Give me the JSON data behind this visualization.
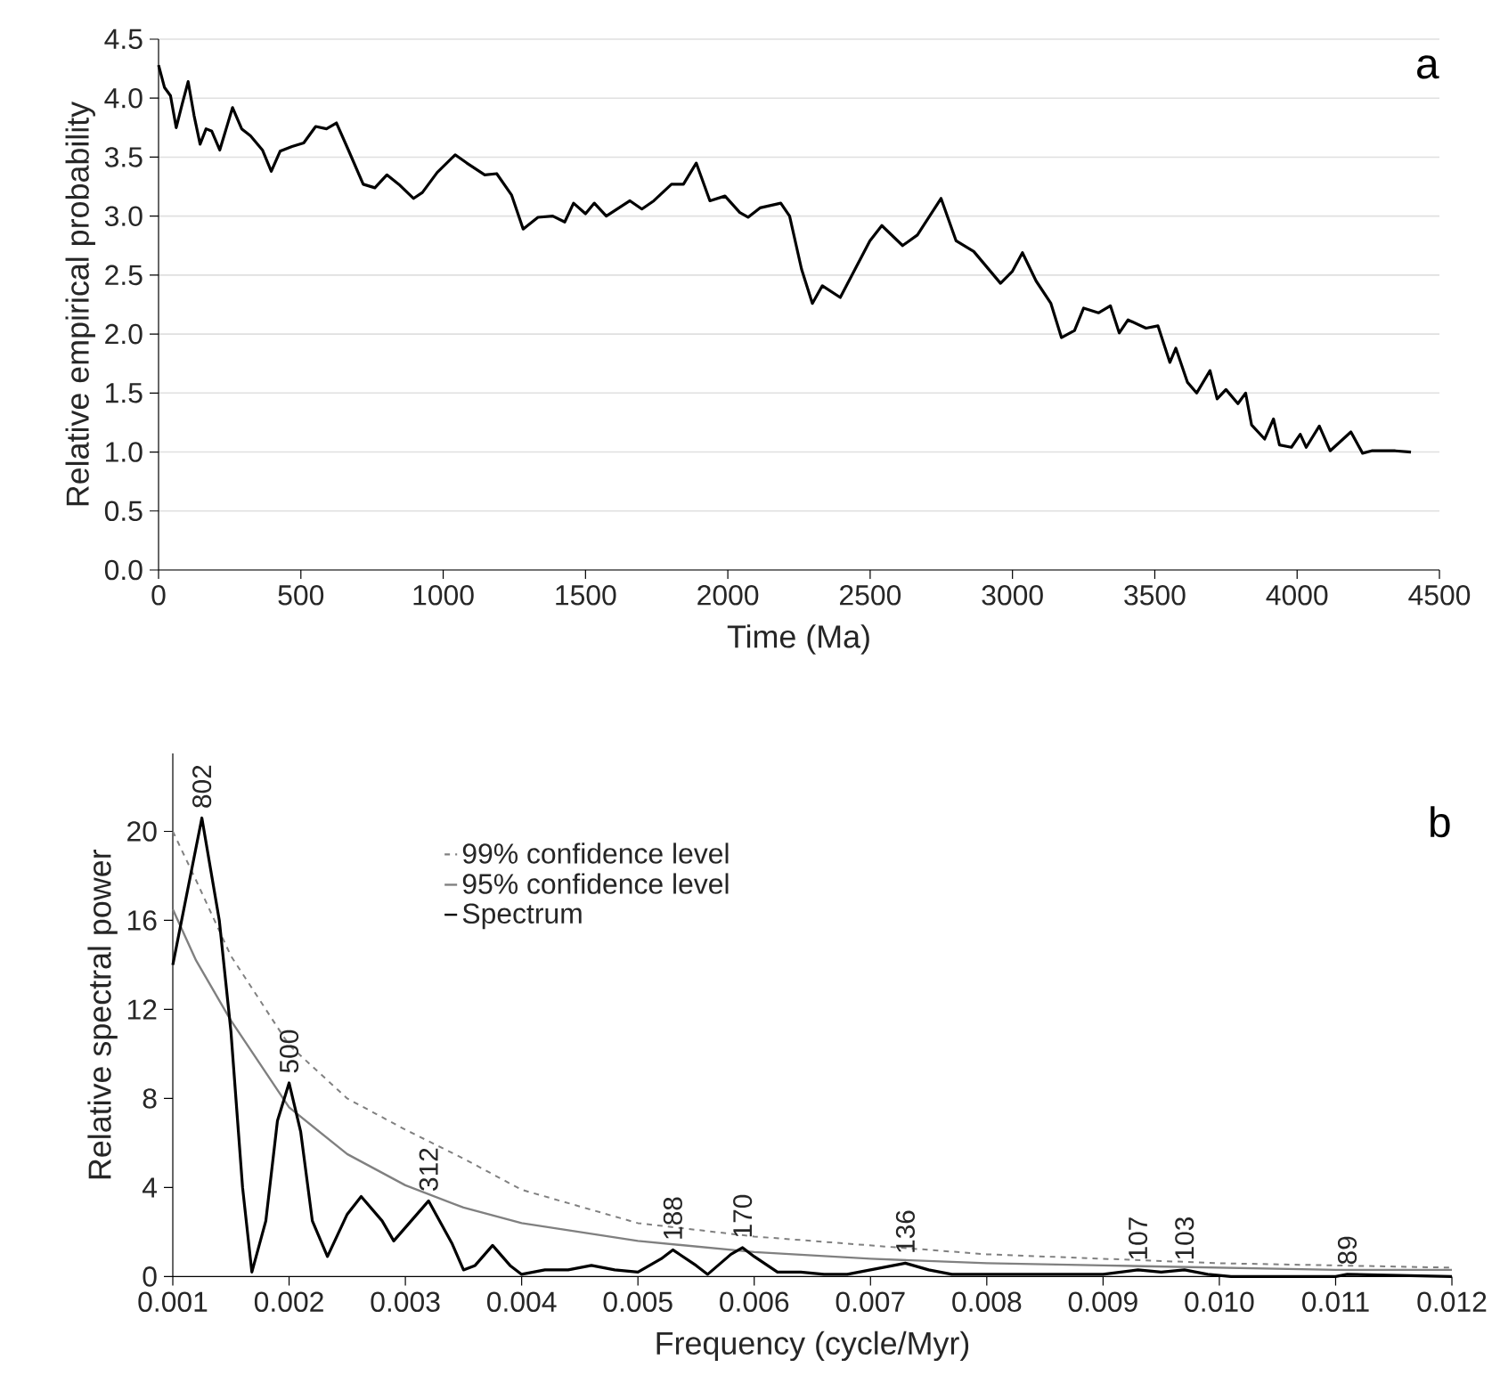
{
  "chart_data": [
    {
      "type": "line",
      "xlabel": "Time (Ma)",
      "ylabel": "Relative empirical probability",
      "annotations": [
        "a"
      ],
      "xlim": [
        0,
        4500
      ],
      "xticks": [
        0,
        500,
        1000,
        1500,
        2000,
        2500,
        3000,
        3500,
        4000,
        4500
      ],
      "ylim": [
        0,
        4.5
      ],
      "yticks": [
        {
          "value": 0,
          "label": "0.0"
        },
        0.5,
        {
          "value": 1,
          "label": "1.0"
        },
        1.5,
        {
          "value": 2,
          "label": "2.0"
        },
        2.5,
        {
          "value": 3,
          "label": "3.0"
        },
        3.5,
        {
          "value": 4,
          "label": "4.0"
        },
        4.5
      ],
      "grid": "y",
      "marker": "none",
      "series": [
        {
          "color": "#000000",
          "line_style": "solid",
          "x": [
            0,
            21,
            42,
            62,
            83,
            104,
            125,
            146,
            167,
            187,
            215,
            260,
            292,
            323,
            365,
            396,
            427,
            469,
            510,
            552,
            590,
            625,
            667,
            719,
            760,
            802,
            844,
            896,
            927,
            979,
            1042,
            1083,
            1146,
            1188,
            1240,
            1281,
            1333,
            1385,
            1427,
            1458,
            1500,
            1531,
            1573,
            1656,
            1698,
            1740,
            1802,
            1844,
            1889,
            1937,
            1990,
            2042,
            2071,
            2113,
            2186,
            2217,
            2259,
            2297,
            2332,
            2395,
            2447,
            2499,
            2541,
            2614,
            2666,
            2749,
            2802,
            2864,
            2958,
            2999,
            3035,
            3083,
            3135,
            3172,
            3218,
            3250,
            3302,
            3344,
            3375,
            3406,
            3469,
            3511,
            3553,
            3574,
            3615,
            3647,
            3694,
            3719,
            3750,
            3792,
            3819,
            3840,
            3886,
            3917,
            3938,
            3980,
            4011,
            4032,
            4078,
            4116,
            4189,
            4230,
            4262,
            4345,
            4400
          ],
          "values": [
            4.28,
            4.09,
            4.02,
            3.75,
            3.95,
            4.14,
            3.85,
            3.61,
            3.74,
            3.72,
            3.56,
            3.92,
            3.74,
            3.68,
            3.56,
            3.38,
            3.55,
            3.59,
            3.62,
            3.76,
            3.74,
            3.79,
            3.56,
            3.27,
            3.24,
            3.35,
            3.27,
            3.15,
            3.2,
            3.37,
            3.52,
            3.45,
            3.35,
            3.36,
            3.18,
            2.89,
            2.99,
            3.0,
            2.95,
            3.11,
            3.02,
            3.11,
            3.0,
            3.13,
            3.06,
            3.13,
            3.27,
            3.27,
            3.45,
            3.13,
            3.17,
            3.03,
            2.99,
            3.07,
            3.11,
            3.0,
            2.55,
            2.26,
            2.41,
            2.31,
            2.55,
            2.79,
            2.92,
            2.75,
            2.84,
            3.15,
            2.79,
            2.7,
            2.43,
            2.53,
            2.69,
            2.45,
            2.26,
            1.97,
            2.03,
            2.22,
            2.18,
            2.24,
            2.01,
            2.12,
            2.05,
            2.07,
            1.76,
            1.88,
            1.59,
            1.5,
            1.69,
            1.45,
            1.53,
            1.41,
            1.5,
            1.23,
            1.11,
            1.28,
            1.06,
            1.04,
            1.15,
            1.04,
            1.22,
            1.01,
            1.17,
            0.99,
            1.01,
            1.01,
            1.0
          ]
        }
      ]
    },
    {
      "type": "line",
      "xlabel": "Frequency (cycle/Myr)",
      "ylabel": "Relative spectral power",
      "annotations": [
        "b",
        {
          "text": "802",
          "x": 0.00125,
          "y": 20.6
        },
        {
          "text": "500",
          "x": 0.002,
          "y": 8.7
        },
        {
          "text": "312",
          "x": 0.0032,
          "y": 3.4
        },
        {
          "text": "188",
          "x": 0.0053,
          "y": 1.2
        },
        {
          "text": "170",
          "x": 0.0059,
          "y": 1.3
        },
        {
          "text": "136",
          "x": 0.0073,
          "y": 0.6
        },
        {
          "text": "107",
          "x": 0.0093,
          "y": 0.3
        },
        {
          "text": "103",
          "x": 0.0097,
          "y": 0.3
        },
        {
          "text": "89",
          "x": 0.0111,
          "y": 0.1
        }
      ],
      "xlim": [
        0.001,
        0.012
      ],
      "xticks": [
        0.001,
        0.002,
        0.003,
        0.004,
        0.005,
        0.006,
        0.007,
        0.008,
        0.009,
        {
          "value": 0.01,
          "label": "0.010"
        },
        0.011,
        0.012
      ],
      "ylim": [
        0,
        23.5
      ],
      "yticks": [
        0,
        4,
        8,
        12,
        16,
        20
      ],
      "grid": false,
      "legend": "top",
      "marker": "none",
      "series": [
        {
          "name": "99% confidence level",
          "color": "#808080",
          "line_style": "dashed",
          "x": [
            0.001,
            0.0012,
            0.0015,
            0.002,
            0.0025,
            0.003,
            0.0035,
            0.004,
            0.005,
            0.006,
            0.007,
            0.008,
            0.009,
            0.01,
            0.011,
            0.012
          ],
          "values": [
            20,
            17.8,
            14.4,
            10.4,
            8,
            6.6,
            5.3,
            3.9,
            2.4,
            1.8,
            1.4,
            1.0,
            0.8,
            0.6,
            0.5,
            0.4
          ]
        },
        {
          "name": "95% confidence level",
          "color": "#808080",
          "line_style": "solid",
          "x": [
            0.001,
            0.0012,
            0.0015,
            0.002,
            0.0025,
            0.003,
            0.0035,
            0.004,
            0.005,
            0.006,
            0.007,
            0.008,
            0.009,
            0.01,
            0.011,
            0.012
          ],
          "values": [
            16.5,
            14.2,
            11.5,
            7.6,
            5.5,
            4.1,
            3.1,
            2.4,
            1.6,
            1.1,
            0.8,
            0.6,
            0.5,
            0.4,
            0.3,
            0.3
          ]
        },
        {
          "name": "Spectrum",
          "color": "#000000",
          "line_style": "solid",
          "x": [
            0.001,
            0.00125,
            0.0014,
            0.0015,
            0.0016,
            0.00168,
            0.0018,
            0.0019,
            0.002,
            0.0021,
            0.0022,
            0.00233,
            0.0025,
            0.00262,
            0.0028,
            0.0029,
            0.003,
            0.0032,
            0.0034,
            0.0035,
            0.0036,
            0.00375,
            0.0039,
            0.004,
            0.0042,
            0.0044,
            0.0046,
            0.0048,
            0.005,
            0.0052,
            0.0053,
            0.0055,
            0.0056,
            0.0058,
            0.0059,
            0.006,
            0.0062,
            0.0064,
            0.0066,
            0.0068,
            0.007,
            0.0073,
            0.0075,
            0.0077,
            0.009,
            0.0093,
            0.0095,
            0.0097,
            0.0099,
            0.0101,
            0.011,
            0.0111,
            0.012
          ],
          "values": [
            14,
            20.6,
            16,
            11,
            4,
            0.2,
            2.5,
            7,
            8.7,
            6.5,
            2.5,
            0.9,
            2.8,
            3.6,
            2.5,
            1.6,
            2.2,
            3.4,
            1.5,
            0.3,
            0.5,
            1.4,
            0.5,
            0.1,
            0.3,
            0.3,
            0.5,
            0.3,
            0.2,
            0.8,
            1.2,
            0.5,
            0.1,
            1.0,
            1.3,
            0.9,
            0.2,
            0.2,
            0.1,
            0.1,
            0.3,
            0.6,
            0.3,
            0.1,
            0.1,
            0.3,
            0.2,
            0.3,
            0.1,
            0,
            0,
            0.1,
            0
          ]
        }
      ]
    }
  ]
}
